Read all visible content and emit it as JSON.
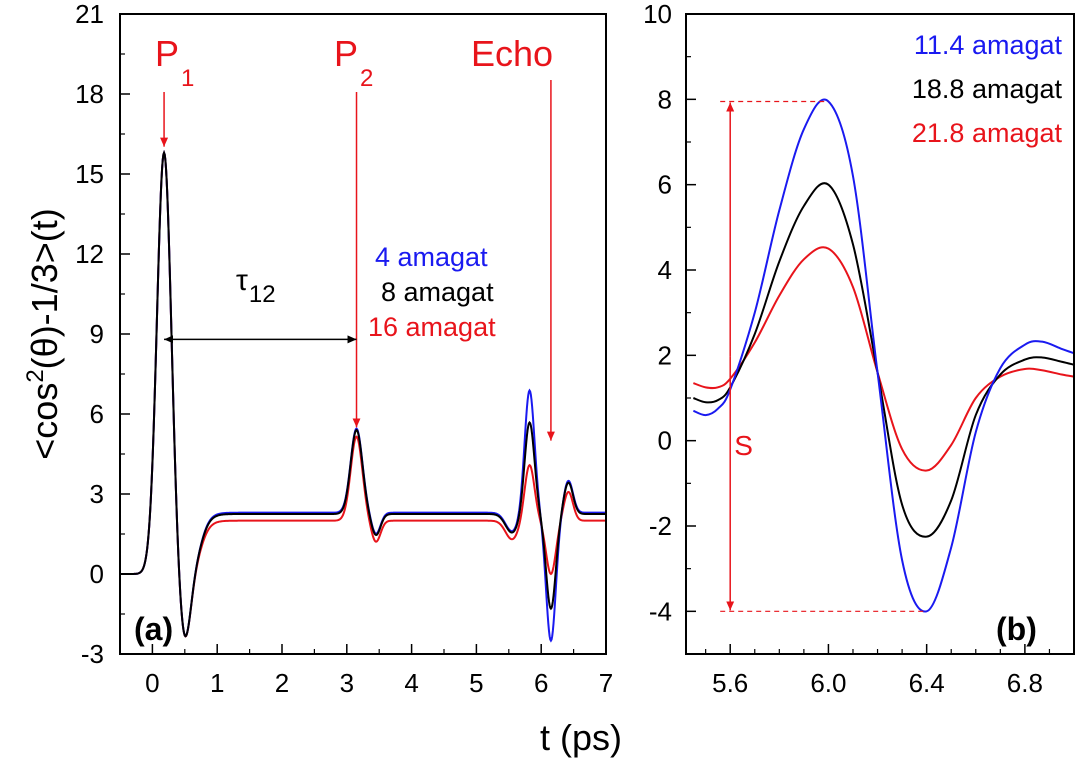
{
  "colors": {
    "blue": "#1a1af0",
    "black": "#000000",
    "red": "#e8141b"
  },
  "chart_data": [
    {
      "type": "line",
      "panel_label": "(a)",
      "xlabel": "t (ps)",
      "ylabel_parts": {
        "a": "<cos",
        "sup": "2",
        "b": "(θ)-1/3>(t)"
      },
      "xlim": [
        -0.5,
        7
      ],
      "ylim": [
        -3,
        21
      ],
      "xticks": [
        "0",
        "1",
        "2",
        "3",
        "4",
        "5",
        "6",
        "7"
      ],
      "yticks": [
        "-3",
        "0",
        "3",
        "6",
        "9",
        "12",
        "15",
        "18",
        "21"
      ],
      "grid": false,
      "legend_position": "center-right",
      "series": [
        {
          "name": "4 amagat",
          "color": "blue",
          "key_points": {
            "echo_max": 6.9,
            "echo_min": -2.5,
            "plateau": 2.3
          }
        },
        {
          "name": "8 amagat",
          "color": "black",
          "key_points": {
            "echo_max": 5.7,
            "echo_min": -1.3,
            "plateau": 2.25
          }
        },
        {
          "name": "16 amagat",
          "color": "red",
          "key_points": {
            "echo_max": 4.1,
            "echo_min": 0.0,
            "plateau": 2.0
          }
        }
      ],
      "shared_features": {
        "P1_peak": {
          "t": 0.18,
          "value": 15.8
        },
        "P2_peak": {
          "t": 3.15,
          "value": 5.35
        }
      },
      "annotations": {
        "p1": {
          "main": "P",
          "sub": "1",
          "arrow_to_t": 0.18
        },
        "p2": {
          "main": "P",
          "sub": "2",
          "arrow_to_t": 3.15
        },
        "echo": {
          "text": "Echo",
          "arrow_to_t": 6.15
        },
        "tau": {
          "main": "τ",
          "sub": "12",
          "from_t": 0.18,
          "to_t": 3.15,
          "value": 8.8
        }
      }
    },
    {
      "type": "line",
      "panel_label": "(b)",
      "xlim": [
        5.42,
        7.0
      ],
      "ylim": [
        -5,
        10
      ],
      "xticks": [
        "5.6",
        "6.0",
        "6.4",
        "6.8"
      ],
      "yticks": [
        "-4",
        "-2",
        "0",
        "2",
        "4",
        "6",
        "8",
        "10"
      ],
      "grid": false,
      "legend_position": "top-right",
      "series": [
        {
          "name": "11.4 amagat",
          "color": "blue",
          "x": [
            5.45,
            5.5,
            5.55,
            5.6,
            5.7,
            5.8,
            5.9,
            6.0,
            6.1,
            6.2,
            6.3,
            6.4,
            6.5,
            6.6,
            6.7,
            6.8,
            6.87,
            6.95,
            7.0
          ],
          "y": [
            0.7,
            0.6,
            0.75,
            1.2,
            3.0,
            5.4,
            7.3,
            7.95,
            6.2,
            1.6,
            -2.8,
            -4.0,
            -2.5,
            0.2,
            1.7,
            2.25,
            2.32,
            2.15,
            2.05
          ]
        },
        {
          "name": "18.8 amagat",
          "color": "black",
          "x": [
            5.45,
            5.5,
            5.55,
            5.6,
            5.7,
            5.8,
            5.9,
            6.0,
            6.1,
            6.2,
            6.3,
            6.4,
            6.5,
            6.6,
            6.7,
            6.8,
            6.87,
            6.95,
            7.0
          ],
          "y": [
            1.0,
            0.9,
            0.95,
            1.25,
            2.5,
            4.2,
            5.5,
            6.0,
            4.6,
            1.6,
            -1.5,
            -2.25,
            -1.4,
            0.6,
            1.55,
            1.9,
            1.95,
            1.85,
            1.78
          ]
        },
        {
          "name": "21.8 amagat",
          "color": "red",
          "x": [
            5.45,
            5.5,
            5.55,
            5.6,
            5.7,
            5.8,
            5.9,
            6.0,
            6.1,
            6.2,
            6.3,
            6.4,
            6.5,
            6.6,
            6.7,
            6.8,
            6.87,
            6.95,
            7.0
          ],
          "y": [
            1.35,
            1.25,
            1.25,
            1.45,
            2.3,
            3.4,
            4.25,
            4.5,
            3.6,
            1.6,
            -0.2,
            -0.7,
            -0.1,
            1.0,
            1.5,
            1.68,
            1.65,
            1.55,
            1.5
          ]
        }
      ],
      "annotations": {
        "s": {
          "text": "S",
          "x": 5.6,
          "from": -4.0,
          "to": 7.95,
          "label_value": -0.1
        }
      }
    }
  ]
}
